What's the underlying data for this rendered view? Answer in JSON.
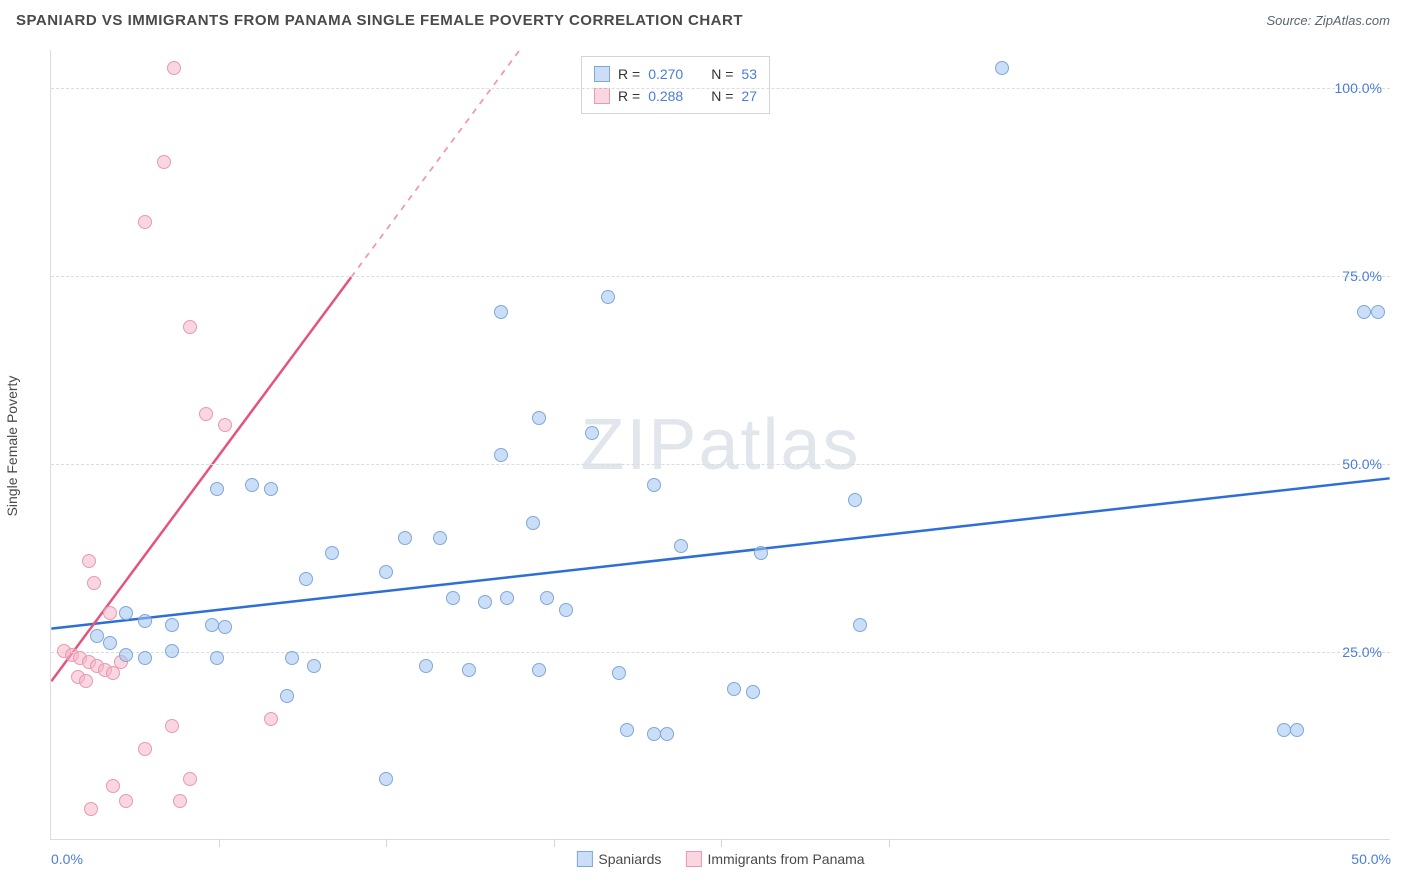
{
  "header": {
    "title": "SPANIARD VS IMMIGRANTS FROM PANAMA SINGLE FEMALE POVERTY CORRELATION CHART",
    "source_prefix": "Source: ",
    "source_name": "ZipAtlas.com"
  },
  "watermark": {
    "bold": "ZIP",
    "light": "atlas"
  },
  "chart": {
    "type": "scatter",
    "xlim": [
      0,
      50
    ],
    "ylim": [
      0,
      105
    ],
    "ylabel": "Single Female Poverty",
    "yticks": [
      {
        "value": 25,
        "label": "25.0%"
      },
      {
        "value": 50,
        "label": "50.0%"
      },
      {
        "value": 75,
        "label": "75.0%"
      },
      {
        "value": 100,
        "label": "100.0%"
      }
    ],
    "xticks_major": [
      {
        "value": 0,
        "label": "0.0%"
      },
      {
        "value": 50,
        "label": "50.0%"
      }
    ],
    "xticks_minor": [
      6.25,
      12.5,
      18.75,
      25,
      31.25
    ],
    "grid_color": "#d8dde2",
    "background_color": "#ffffff",
    "series": [
      {
        "name": "Spaniards",
        "fill": "rgba(160,195,240,0.55)",
        "stroke": "#7fa8d8",
        "marker_radius": 7,
        "trend": {
          "x1": 0,
          "y1": 28,
          "x2": 50,
          "y2": 48,
          "solid_until_x": 50,
          "color": "#2d6fd6",
          "width": 2.5
        },
        "points": [
          [
            35.5,
            102.5
          ],
          [
            49.5,
            70
          ],
          [
            49,
            70
          ],
          [
            20.8,
            72
          ],
          [
            16.8,
            70
          ],
          [
            18.2,
            56
          ],
          [
            20.2,
            54
          ],
          [
            7.5,
            47
          ],
          [
            8.2,
            46.5
          ],
          [
            6.2,
            46.5
          ],
          [
            16.8,
            51
          ],
          [
            22.5,
            47
          ],
          [
            30,
            45
          ],
          [
            13.2,
            40
          ],
          [
            14.5,
            40
          ],
          [
            10.5,
            38
          ],
          [
            23.5,
            39
          ],
          [
            26.5,
            38
          ],
          [
            18,
            42
          ],
          [
            12.5,
            35.5
          ],
          [
            9.5,
            34.5
          ],
          [
            17,
            32
          ],
          [
            15,
            32
          ],
          [
            16.2,
            31.5
          ],
          [
            18.5,
            32
          ],
          [
            19.2,
            30.5
          ],
          [
            30.2,
            28.5
          ],
          [
            2.8,
            30
          ],
          [
            3.5,
            29
          ],
          [
            4.5,
            28.5
          ],
          [
            6,
            28.5
          ],
          [
            6.5,
            28.2
          ],
          [
            1.7,
            27
          ],
          [
            2.2,
            26
          ],
          [
            2.8,
            24.5
          ],
          [
            3.5,
            24
          ],
          [
            4.5,
            25
          ],
          [
            6.2,
            24
          ],
          [
            9,
            24
          ],
          [
            9.8,
            23
          ],
          [
            14,
            23
          ],
          [
            15.6,
            22.5
          ],
          [
            18.2,
            22.5
          ],
          [
            21.2,
            22
          ],
          [
            21.5,
            14.5
          ],
          [
            22.5,
            14
          ],
          [
            25.5,
            20
          ],
          [
            26.2,
            19.5
          ],
          [
            23,
            14
          ],
          [
            8.8,
            19
          ],
          [
            12.5,
            8
          ],
          [
            46,
            14.5
          ],
          [
            46.5,
            14.5
          ]
        ]
      },
      {
        "name": "Immigrants from Panama",
        "fill": "rgba(245,180,200,0.55)",
        "stroke": "#e89ab0",
        "marker_radius": 7,
        "trend": {
          "x1": 0,
          "y1": 21,
          "x2": 17.5,
          "y2": 105,
          "solid_until_x": 11.2,
          "color": "#e4557e",
          "width": 2.5
        },
        "points": [
          [
            4.6,
            102.5
          ],
          [
            4.2,
            90
          ],
          [
            3.5,
            82
          ],
          [
            5.2,
            68
          ],
          [
            5.8,
            56.5
          ],
          [
            6.5,
            55
          ],
          [
            1.4,
            37
          ],
          [
            1.6,
            34
          ],
          [
            2.2,
            30
          ],
          [
            0.5,
            25
          ],
          [
            0.8,
            24.5
          ],
          [
            1.1,
            24
          ],
          [
            1.4,
            23.5
          ],
          [
            1.7,
            23
          ],
          [
            2.0,
            22.5
          ],
          [
            2.3,
            22
          ],
          [
            2.6,
            23.5
          ],
          [
            1.0,
            21.5
          ],
          [
            1.3,
            21
          ],
          [
            4.5,
            15
          ],
          [
            3.5,
            12
          ],
          [
            8.2,
            16
          ],
          [
            5.2,
            8
          ],
          [
            2.3,
            7
          ],
          [
            2.8,
            5
          ],
          [
            4.8,
            5
          ],
          [
            1.5,
            4
          ]
        ]
      }
    ],
    "legend_top": {
      "rows": [
        {
          "swatch_fill": "rgba(160,195,240,0.55)",
          "swatch_stroke": "#7fa8d8",
          "r_label": "R =",
          "r_value": "0.270",
          "n_label": "N =",
          "n_value": "53"
        },
        {
          "swatch_fill": "rgba(245,180,200,0.55)",
          "swatch_stroke": "#e89ab0",
          "r_label": "R =",
          "r_value": "0.288",
          "n_label": "N =",
          "n_value": "27"
        }
      ]
    },
    "legend_bottom": [
      {
        "swatch_fill": "rgba(160,195,240,0.55)",
        "swatch_stroke": "#7fa8d8",
        "label": "Spaniards"
      },
      {
        "swatch_fill": "rgba(245,180,200,0.55)",
        "swatch_stroke": "#e89ab0",
        "label": "Immigrants from Panama"
      }
    ]
  }
}
